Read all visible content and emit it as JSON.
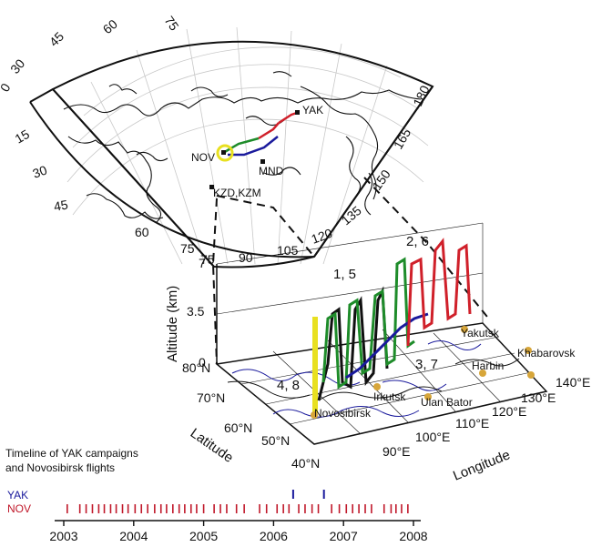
{
  "map_top": {
    "lat_labels": [
      "0",
      "15",
      "30",
      "45",
      "60",
      "75"
    ],
    "lon_labels_upper": [
      "30",
      "45",
      "60",
      "75"
    ],
    "lon_labels_lower": [
      "75",
      "90",
      "105",
      "120",
      "135",
      "150",
      "165",
      "180"
    ],
    "stations": [
      "NOV",
      "MND",
      "YAK",
      "KZD,KZM"
    ]
  },
  "box3d": {
    "altitude_label": "Altitude (km)",
    "altitude_ticks": [
      "0",
      "3.5",
      "7"
    ],
    "latitude_label": "Latitude",
    "latitude_ticks": [
      "80°N",
      "70°N",
      "60°N",
      "50°N",
      "40°N"
    ],
    "longitude_label": "Longitude",
    "longitude_ticks": [
      "90°E",
      "100°E",
      "110°E",
      "120°E",
      "130°E",
      "140°E"
    ],
    "cities": [
      "Novosibirsk",
      "Irkutsk",
      "Ulan Bator",
      "Harbin",
      "Yakutsk",
      "Khabarovsk"
    ],
    "flight_labels": [
      {
        "text": "1, 5",
        "color": "#1e8c2a"
      },
      {
        "text": "2, 6",
        "color": "#d0202a"
      },
      {
        "text": "3, 7",
        "color": "#1a1a9c"
      },
      {
        "text": "4, 8",
        "color": "#111111"
      }
    ]
  },
  "timeline": {
    "title_line1": "Timeline of YAK campaigns",
    "title_line2": "and Novosibirsk flights",
    "yak_label": "YAK",
    "nov_label": "NOV",
    "yak_color": "#1a1a9c",
    "nov_color": "#c0182a",
    "years": [
      "2003",
      "2004",
      "2005",
      "2006",
      "2007",
      "2008"
    ],
    "yak_events": [
      2006.28,
      2006.72
    ],
    "nov_events": [
      2003.05,
      2003.23,
      2003.32,
      2003.41,
      2003.5,
      2003.58,
      2003.67,
      2003.75,
      2003.84,
      2003.92,
      2004.02,
      2004.11,
      2004.2,
      2004.3,
      2004.39,
      2004.47,
      2004.56,
      2004.65,
      2004.73,
      2004.82,
      2004.9,
      2005.0,
      2005.15,
      2005.24,
      2005.33,
      2005.47,
      2005.58,
      2005.8,
      2005.9,
      2006.05,
      2006.14,
      2006.22,
      2006.36,
      2006.45,
      2006.55,
      2006.64,
      2006.83,
      2006.94,
      2007.04,
      2007.13,
      2007.22,
      2007.31,
      2007.4,
      2007.58,
      2007.68,
      2007.75,
      2007.83,
      2007.92
    ]
  }
}
